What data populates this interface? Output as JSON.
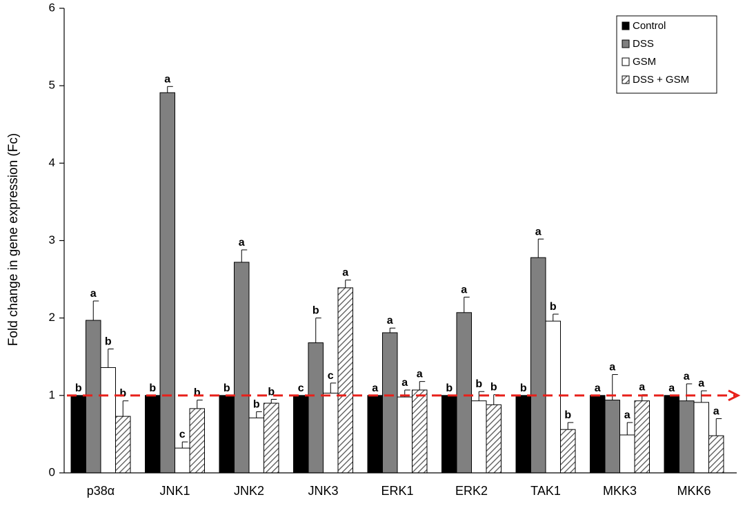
{
  "chart_data": {
    "type": "bar",
    "title": "",
    "xlabel": "",
    "ylabel": "Fold change in gene expression (Fc)",
    "ylim": [
      0,
      6
    ],
    "yticks": [
      0,
      1,
      2,
      3,
      4,
      5,
      6
    ],
    "grid": false,
    "legend_position": "top-right",
    "reference_line": {
      "y": 1,
      "style": "dashed-arrow",
      "color": "#e8201a"
    },
    "categories": [
      "p38α",
      "JNK1",
      "JNK2",
      "JNK3",
      "ERK1",
      "ERK2",
      "TAK1",
      "MKK3",
      "MKK6"
    ],
    "series": [
      {
        "name": "Control",
        "fill": "#000000",
        "values": [
          1.0,
          1.0,
          1.0,
          1.0,
          1.0,
          1.0,
          1.0,
          1.0,
          1.0
        ],
        "errors": [
          0,
          0,
          0,
          0,
          0,
          0,
          0,
          0,
          0
        ],
        "labels": [
          "b",
          "b",
          "b",
          "c",
          "a",
          "b",
          "b",
          "a",
          "a"
        ]
      },
      {
        "name": "DSS",
        "fill": "#808080",
        "values": [
          1.97,
          4.91,
          2.72,
          1.68,
          1.81,
          2.07,
          2.78,
          0.94,
          0.93
        ],
        "errors": [
          0.25,
          0.08,
          0.16,
          0.32,
          0.06,
          0.2,
          0.24,
          0.33,
          0.22
        ],
        "labels": [
          "a",
          "a",
          "a",
          "b",
          "a",
          "a",
          "a",
          "a",
          "a"
        ]
      },
      {
        "name": "GSM",
        "fill": "#ffffff",
        "values": [
          1.36,
          0.32,
          0.71,
          1.03,
          0.98,
          0.93,
          1.96,
          0.49,
          0.91
        ],
        "errors": [
          0.24,
          0.08,
          0.08,
          0.13,
          0.09,
          0.12,
          0.09,
          0.16,
          0.15
        ],
        "labels": [
          "b",
          "c",
          "b",
          "c",
          "a",
          "b",
          "b",
          "a",
          "a"
        ]
      },
      {
        "name": "DSS + GSM",
        "fill": "hatched",
        "values": [
          0.73,
          0.83,
          0.9,
          2.39,
          1.07,
          0.88,
          0.56,
          0.93,
          0.48
        ],
        "errors": [
          0.2,
          0.11,
          0.05,
          0.1,
          0.11,
          0.13,
          0.09,
          0.08,
          0.22
        ],
        "labels": [
          "b",
          "b",
          "b",
          "a",
          "a",
          "b",
          "b",
          "a",
          "a"
        ]
      }
    ]
  }
}
